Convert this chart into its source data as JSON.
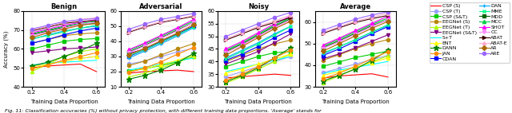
{
  "x": [
    0.2,
    0.3,
    0.4,
    0.5,
    0.6
  ],
  "subplot_titles": [
    "Benign",
    "Adversarial",
    "Noisy",
    "Average"
  ],
  "ylabel": "Accuracy (%)",
  "xlabel": "Training Data Proportion",
  "caption": "Fig. 11: Classification accuracies (%) without privacy protection, with different training data proportions. 'Average' stands for",
  "benign_ylim": [
    40,
    80
  ],
  "adversarial_ylim": [
    10,
    60
  ],
  "noisy_ylim": [
    30,
    60
  ],
  "average_ylim": [
    30,
    65
  ],
  "series": [
    {
      "name": "CSP (S)",
      "color": "#ff0000",
      "marker": "none",
      "linestyle": "-",
      "benign": [
        50.0,
        51.0,
        51.5,
        52.0,
        48.0
      ],
      "adversarial": [
        19.0,
        20.0,
        20.5,
        21.0,
        20.0
      ],
      "noisy": [
        33.5,
        34.0,
        34.5,
        35.0,
        34.5
      ],
      "average": [
        34.0,
        35.0,
        35.5,
        36.0,
        34.5
      ]
    },
    {
      "name": "CSP (T)",
      "color": "#a0a0ff",
      "marker": "o",
      "linestyle": "-",
      "benign": [
        51.0,
        52.0,
        54.0,
        55.0,
        56.0
      ],
      "adversarial": [
        25.0,
        27.0,
        30.0,
        33.0,
        35.5
      ],
      "noisy": [
        34.0,
        36.0,
        38.0,
        40.0,
        42.0
      ],
      "average": [
        36.5,
        38.5,
        40.5,
        42.5,
        44.5
      ]
    },
    {
      "name": "CSP (S&T)",
      "color": "#00cc00",
      "marker": "s",
      "linestyle": "-",
      "benign": [
        60.0,
        62.0,
        64.0,
        65.0,
        65.5
      ],
      "adversarial": [
        20.5,
        22.0,
        24.0,
        26.5,
        30.0
      ],
      "noisy": [
        38.0,
        40.0,
        42.0,
        43.5,
        44.0
      ],
      "average": [
        39.5,
        41.5,
        43.5,
        45.0,
        46.5
      ]
    },
    {
      "name": "EEGNet (S)",
      "color": "#b8860b",
      "marker": "o",
      "linestyle": "-",
      "benign": [
        63.0,
        65.0,
        67.0,
        68.0,
        68.5
      ],
      "adversarial": [
        24.0,
        27.0,
        31.0,
        35.0,
        38.5
      ],
      "noisy": [
        40.0,
        42.5,
        45.0,
        47.0,
        48.5
      ],
      "average": [
        42.3,
        44.8,
        47.7,
        50.0,
        51.8
      ]
    },
    {
      "name": "EEGNet (T)",
      "color": "#aaff00",
      "marker": "^",
      "linestyle": "-",
      "benign": [
        48.0,
        52.0,
        56.0,
        58.5,
        60.0
      ],
      "adversarial": [
        16.5,
        19.0,
        22.5,
        26.0,
        30.0
      ],
      "noisy": [
        31.5,
        34.0,
        37.0,
        40.0,
        43.0
      ],
      "average": [
        32.0,
        35.0,
        38.5,
        41.5,
        44.3
      ]
    },
    {
      "name": "EEGNet (S&T)",
      "color": "#800080",
      "marker": "v",
      "linestyle": "-",
      "benign": [
        58.0,
        59.0,
        60.0,
        60.5,
        61.0
      ],
      "adversarial": [
        32.0,
        35.0,
        40.0,
        45.0,
        50.0
      ],
      "noisy": [
        39.0,
        41.5,
        44.0,
        47.5,
        51.0
      ],
      "average": [
        43.0,
        45.2,
        48.0,
        51.0,
        54.0
      ]
    },
    {
      "name": "S+T",
      "color": "#00ffff",
      "marker": "none",
      "linestyle": "-",
      "benign": [
        51.5,
        52.5,
        53.0,
        53.5,
        54.0
      ],
      "adversarial": [
        21.0,
        23.0,
        25.0,
        27.0,
        29.0
      ],
      "noisy": [
        36.0,
        37.5,
        39.0,
        40.5,
        42.0
      ],
      "average": [
        36.2,
        37.7,
        39.0,
        40.3,
        41.7
      ]
    },
    {
      "name": "ENT",
      "color": "#ffff00",
      "marker": "^",
      "linestyle": "-",
      "benign": [
        50.5,
        52.0,
        53.5,
        55.0,
        56.0
      ],
      "adversarial": [
        20.0,
        22.0,
        24.5,
        27.5,
        31.0
      ],
      "noisy": [
        35.5,
        37.0,
        39.0,
        41.0,
        43.0
      ],
      "average": [
        35.3,
        37.0,
        39.0,
        41.2,
        43.3
      ]
    },
    {
      "name": "DANN",
      "color": "#008000",
      "marker": "*",
      "linestyle": "-",
      "benign": [
        51.0,
        53.0,
        56.0,
        59.0,
        63.0
      ],
      "adversarial": [
        15.0,
        17.5,
        21.0,
        26.0,
        32.0
      ],
      "noisy": [
        32.0,
        34.5,
        37.5,
        41.5,
        45.5
      ],
      "average": [
        32.7,
        35.3,
        38.2,
        42.2,
        46.8
      ]
    },
    {
      "name": "JAN",
      "color": "#ff8c00",
      "marker": "o",
      "linestyle": "-",
      "benign": [
        49.5,
        51.5,
        54.0,
        56.0,
        58.0
      ],
      "adversarial": [
        19.5,
        22.5,
        26.5,
        31.5,
        36.0
      ],
      "noisy": [
        32.5,
        35.0,
        38.0,
        41.5,
        44.5
      ],
      "average": [
        33.8,
        36.3,
        39.5,
        43.0,
        46.2
      ]
    },
    {
      "name": "CDAN",
      "color": "#0000ff",
      "marker": "s",
      "linestyle": "-",
      "benign": [
        63.0,
        65.0,
        67.5,
        69.5,
        71.0
      ],
      "adversarial": [
        30.0,
        34.5,
        39.5,
        44.5,
        50.0
      ],
      "noisy": [
        40.5,
        43.0,
        46.0,
        49.5,
        52.5
      ],
      "average": [
        44.5,
        47.5,
        51.0,
        54.5,
        57.8
      ]
    },
    {
      "name": "DAN",
      "color": "#00aaff",
      "marker": "+",
      "linestyle": "-",
      "benign": [
        65.0,
        67.5,
        69.5,
        71.0,
        72.0
      ],
      "adversarial": [
        29.0,
        33.5,
        38.5,
        43.5,
        49.0
      ],
      "noisy": [
        41.5,
        44.5,
        47.5,
        51.0,
        54.0
      ],
      "average": [
        45.2,
        48.5,
        51.8,
        55.2,
        58.3
      ]
    },
    {
      "name": "MME",
      "color": "#00ff88",
      "marker": "x",
      "linestyle": "-",
      "benign": [
        65.5,
        67.0,
        69.0,
        71.0,
        72.5
      ],
      "adversarial": [
        30.5,
        34.5,
        39.5,
        44.5,
        49.5
      ],
      "noisy": [
        41.0,
        44.0,
        47.0,
        50.5,
        54.0
      ],
      "average": [
        45.7,
        48.5,
        51.8,
        55.3,
        58.7
      ]
    },
    {
      "name": "MDD",
      "color": "#006600",
      "marker": "s",
      "linestyle": "-",
      "benign": [
        67.5,
        69.5,
        71.5,
        73.0,
        73.5
      ],
      "adversarial": [
        33.0,
        37.5,
        42.5,
        47.5,
        52.5
      ],
      "noisy": [
        44.0,
        47.0,
        50.5,
        54.0,
        57.0
      ],
      "average": [
        48.2,
        51.3,
        54.8,
        58.2,
        61.0
      ]
    },
    {
      "name": "MCC",
      "color": "#00cc44",
      "marker": "^",
      "linestyle": "-",
      "benign": [
        68.0,
        70.0,
        72.0,
        73.5,
        74.5
      ],
      "adversarial": [
        34.0,
        38.5,
        43.5,
        48.5,
        53.5
      ],
      "noisy": [
        44.5,
        47.5,
        51.0,
        54.5,
        57.5
      ],
      "average": [
        48.8,
        52.0,
        55.5,
        58.8,
        61.8
      ]
    },
    {
      "name": "SHOT",
      "color": "#ff00ff",
      "marker": "^",
      "linestyle": "-",
      "benign": [
        68.5,
        70.5,
        72.5,
        74.0,
        75.5
      ],
      "adversarial": [
        34.5,
        39.0,
        44.0,
        49.0,
        54.5
      ],
      "noisy": [
        45.0,
        48.0,
        51.5,
        55.0,
        58.0
      ],
      "average": [
        49.3,
        52.5,
        56.0,
        59.3,
        62.7
      ]
    },
    {
      "name": "CC",
      "color": "#ff88ff",
      "marker": "v",
      "linestyle": "-",
      "benign": [
        67.0,
        69.0,
        71.0,
        73.0,
        74.0
      ],
      "adversarial": [
        32.5,
        37.0,
        42.0,
        47.0,
        52.5
      ],
      "noisy": [
        43.5,
        46.5,
        50.0,
        53.5,
        56.5
      ],
      "average": [
        47.7,
        50.8,
        54.3,
        57.8,
        61.0
      ]
    },
    {
      "name": "ABAT",
      "color": "#3d0000",
      "marker": ">",
      "linestyle": "-",
      "benign": [
        69.5,
        71.5,
        73.5,
        74.5,
        75.0
      ],
      "adversarial": [
        46.0,
        49.5,
        52.5,
        54.5,
        56.5
      ],
      "noisy": [
        48.5,
        51.0,
        53.5,
        55.5,
        57.5
      ],
      "average": [
        54.7,
        57.3,
        59.8,
        61.5,
        63.0
      ]
    },
    {
      "name": "ABAT-E",
      "color": "#ffaacc",
      "marker": "^",
      "linestyle": "-",
      "benign": [
        70.0,
        72.0,
        74.0,
        75.5,
        76.5
      ],
      "adversarial": [
        46.5,
        50.0,
        53.0,
        55.0,
        57.0
      ],
      "noisy": [
        49.0,
        51.5,
        54.0,
        56.0,
        58.5
      ],
      "average": [
        55.2,
        57.8,
        60.3,
        62.2,
        64.0
      ]
    },
    {
      "name": "AR",
      "color": "#aa6600",
      "marker": "D",
      "linestyle": "-",
      "benign": [
        66.0,
        68.5,
        70.5,
        72.5,
        73.5
      ],
      "adversarial": [
        31.0,
        35.5,
        40.5,
        45.5,
        51.0
      ],
      "noisy": [
        42.5,
        46.0,
        49.5,
        53.0,
        56.0
      ],
      "average": [
        46.5,
        50.0,
        53.5,
        57.0,
        60.2
      ]
    },
    {
      "name": "ARE",
      "color": "#9966ff",
      "marker": "o",
      "linestyle": "-",
      "benign": [
        70.5,
        72.5,
        74.5,
        75.5,
        76.0
      ],
      "adversarial": [
        48.0,
        51.5,
        54.5,
        56.5,
        58.5
      ],
      "noisy": [
        50.0,
        52.5,
        55.0,
        57.5,
        59.5
      ],
      "average": [
        56.2,
        58.8,
        61.3,
        63.2,
        64.7
      ]
    }
  ],
  "legend_cols": 2,
  "figsize": [
    6.4,
    1.42
  ],
  "dpi": 100
}
